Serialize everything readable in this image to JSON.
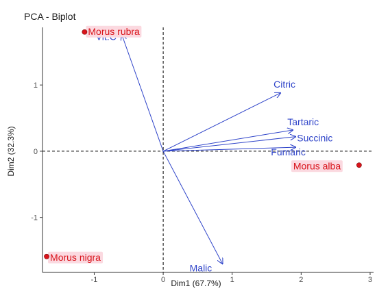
{
  "chart_data": {
    "type": "scatter",
    "title": "PCA - Biplot",
    "xlabel": "Dim1 (67.7%)",
    "ylabel": "Dim2 (32.3%)",
    "xlim": [
      -1.75,
      3.05
    ],
    "ylim": [
      -1.83,
      1.87
    ],
    "x_ticks": [
      -1,
      0,
      1,
      2,
      3
    ],
    "y_ticks": [
      -1,
      0,
      1
    ],
    "x_tick_labels": [
      "-1",
      "0",
      "1",
      "2",
      "3"
    ],
    "y_tick_labels": [
      "-1",
      "0",
      "1"
    ],
    "grid": false,
    "reference_lines": {
      "x": 0,
      "y": 0,
      "style": "dashed"
    },
    "individuals": [
      {
        "label": "Morus rubra",
        "x": -1.14,
        "y": 1.8
      },
      {
        "label": "Morus alba",
        "x": 2.84,
        "y": -0.21
      },
      {
        "label": "Morus nigra",
        "x": -1.69,
        "y": -1.59
      }
    ],
    "variables": [
      {
        "label": "Vit.C",
        "x": -0.6,
        "y": 1.76
      },
      {
        "label": "Citric",
        "x": 1.7,
        "y": 0.88
      },
      {
        "label": "Tartaric",
        "x": 1.88,
        "y": 0.32
      },
      {
        "label": "Succinic",
        "x": 1.92,
        "y": 0.22
      },
      {
        "label": "Fumaric",
        "x": 1.92,
        "y": 0.06
      },
      {
        "label": "Malic",
        "x": 0.86,
        "y": -1.7
      }
    ],
    "colors": {
      "variables": "#2f44c9",
      "individuals": "#d9141b",
      "label_background": "#fbd9e0",
      "axes": "#333333"
    }
  }
}
